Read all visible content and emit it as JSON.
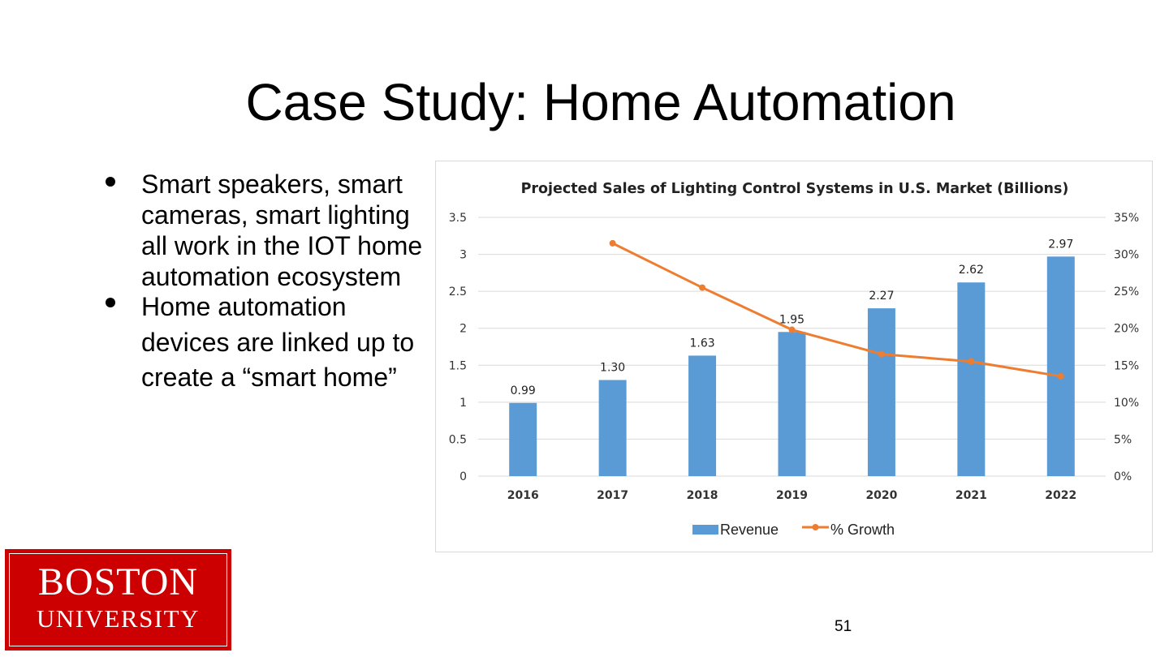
{
  "slide": {
    "title": "Case Study: Home Automation",
    "bullets": [
      "Smart speakers, smart cameras, smart lighting all work in the IOT home automation ecosystem",
      "Home automation devices are linked up to create a “smart home”"
    ],
    "page_number": "51"
  },
  "logo": {
    "line1": "BOSTON",
    "line2": "UNIVERSITY",
    "color": "#cc0000"
  },
  "colors": {
    "bar": "#5b9bd5",
    "line": "#ed7d31",
    "grid": "#d9d9d9"
  },
  "chart_data": {
    "type": "bar",
    "title": "Projected Sales of Lighting Control Systems in U.S. Market (Billions)",
    "categories": [
      "2016",
      "2017",
      "2018",
      "2019",
      "2020",
      "2021",
      "2022"
    ],
    "series": [
      {
        "name": "Revenue",
        "type": "bar",
        "axis": "left",
        "values": [
          0.99,
          1.3,
          1.63,
          1.95,
          2.27,
          2.62,
          2.97
        ],
        "data_labels": [
          "0.99",
          "1.30",
          "1.63",
          "1.95",
          "2.27",
          "2.62",
          "2.97"
        ]
      },
      {
        "name": "% Growth",
        "type": "line",
        "axis": "right",
        "values": [
          null,
          31.5,
          25.5,
          19.8,
          16.5,
          15.5,
          13.5
        ]
      }
    ],
    "ylim": [
      0,
      3.5
    ],
    "y_ticks": [
      "0",
      "0.5",
      "1",
      "1.5",
      "2",
      "2.5",
      "3",
      "3.5"
    ],
    "y2lim": [
      0,
      35
    ],
    "y2_ticks": [
      "0%",
      "5%",
      "10%",
      "15%",
      "20%",
      "25%",
      "30%",
      "35%"
    ],
    "grid": true,
    "legend": "bottom"
  }
}
